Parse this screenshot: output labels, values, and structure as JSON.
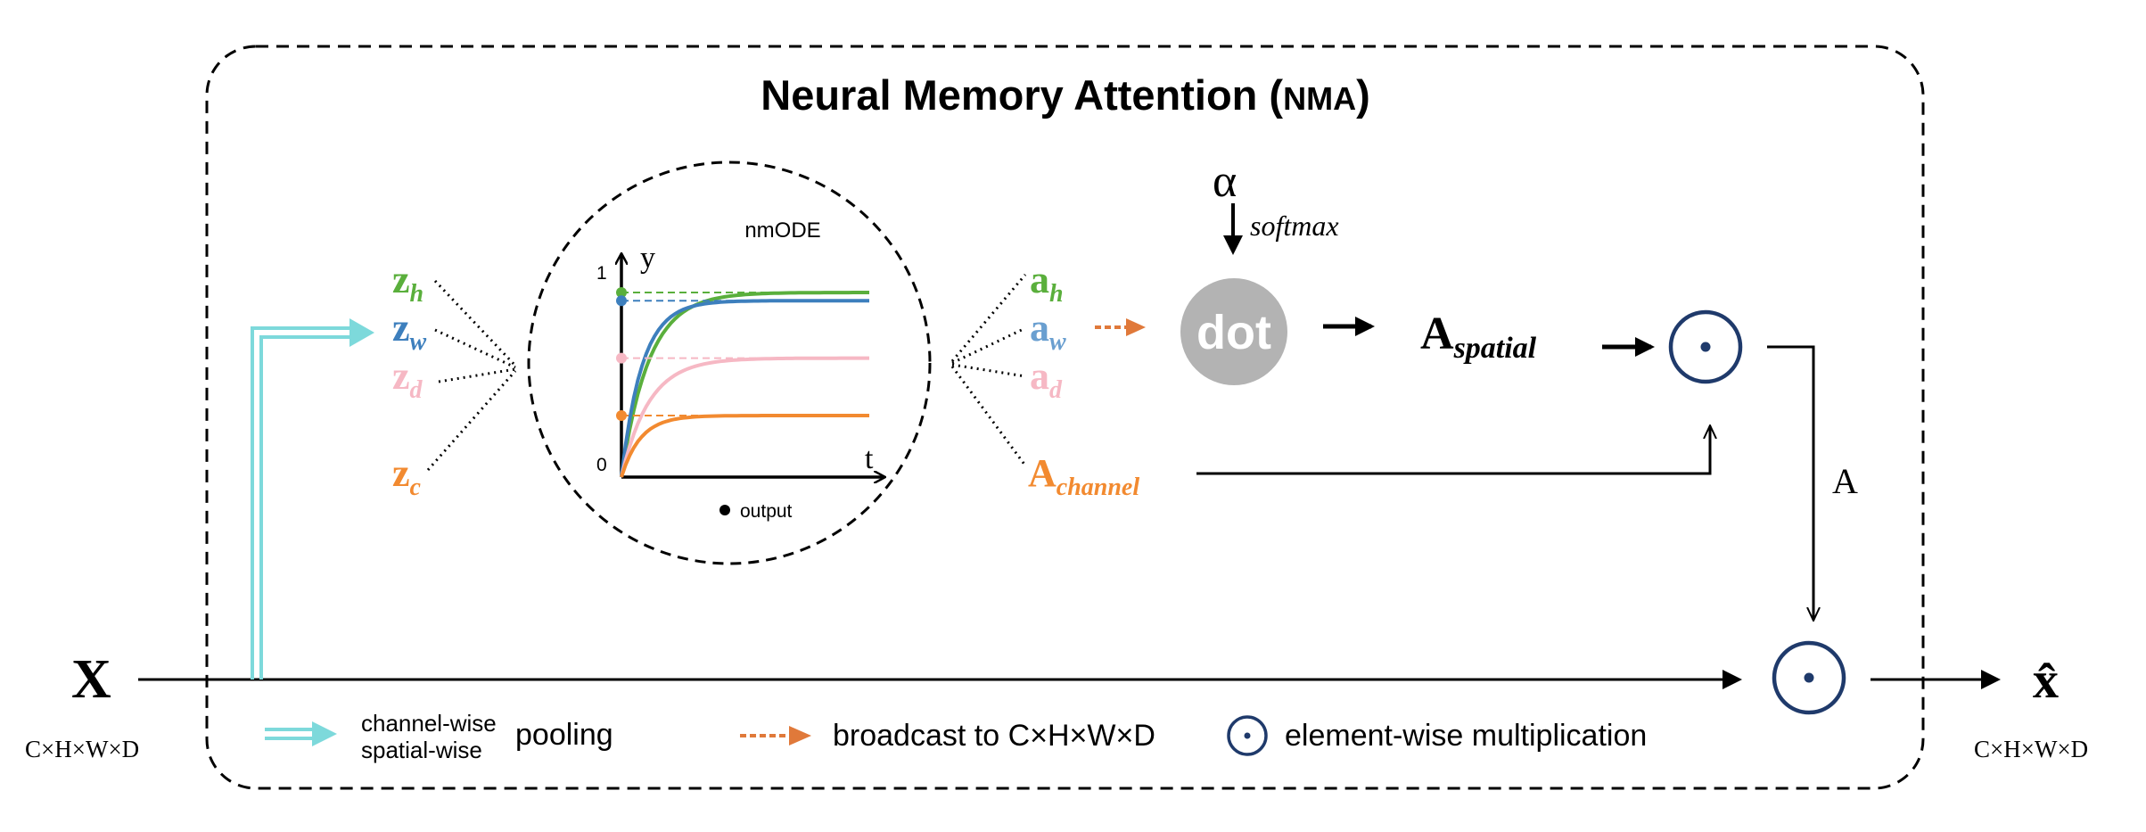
{
  "title": {
    "main": "Neural Memory Attention (",
    "abbr": "NMA",
    "close": ")"
  },
  "input": {
    "symbol": "X",
    "dims": "C×H×W×D"
  },
  "output": {
    "symbol": "x̂",
    "dims": "C×H×W×D"
  },
  "z_labels": [
    {
      "base": "z",
      "sub": "h",
      "color": "#5aaf3c"
    },
    {
      "base": "z",
      "sub": "w",
      "color": "#3d7fbd"
    },
    {
      "base": "z",
      "sub": "d",
      "color": "#f6b8c4"
    },
    {
      "base": "z",
      "sub": "c",
      "color": "#f28a30"
    }
  ],
  "a_labels": [
    {
      "base": "a",
      "sub": "h",
      "color": "#5aaf3c"
    },
    {
      "base": "a",
      "sub": "w",
      "color": "#6a9fd0"
    },
    {
      "base": "a",
      "sub": "d",
      "color": "#f6b8c4"
    },
    {
      "base": "A",
      "sub": "channel",
      "color": "#f28a30"
    }
  ],
  "nmode": {
    "label": "nmODE",
    "y_axis": "y",
    "x_axis": "t",
    "tick_top": "1",
    "tick_origin": "0",
    "output_legend": "output",
    "curve_colors": [
      "#5aaf3c",
      "#3d7fbd",
      "#f6b8c4",
      "#f28a30"
    ],
    "asymptotes": [
      0.9,
      0.86,
      0.58,
      0.3
    ]
  },
  "alpha": "α",
  "softmax": "softmax",
  "dot_label": "dot",
  "a_spatial": {
    "base": "A",
    "sub": "spatial"
  },
  "a_edge": "A",
  "legend": {
    "pool_line1": "channel-wise",
    "pool_line2": "spatial-wise",
    "pool_word": "pooling",
    "broadcast": "broadcast to C×H×W×D",
    "elementwise": "element-wise multiplication"
  },
  "colors": {
    "pool_arrow": "#7dd9db",
    "broadcast_arrow": "#e0793a",
    "odot": "#1f3a6b",
    "dot_circle": "#b3b3b3"
  }
}
